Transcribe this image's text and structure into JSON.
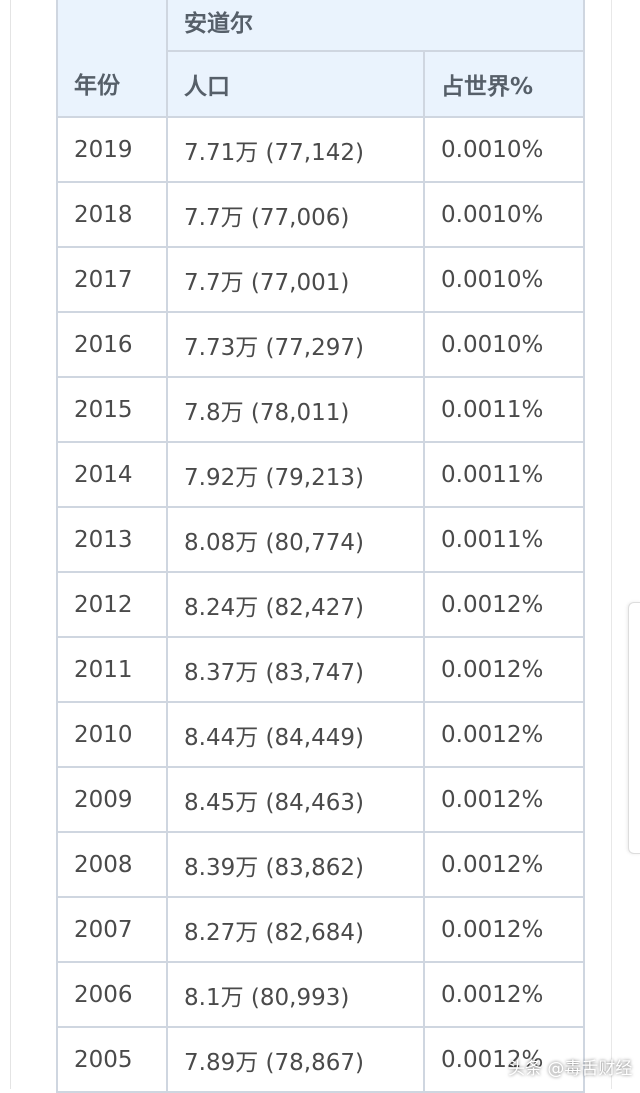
{
  "table": {
    "group_header": "安道尔",
    "headers": {
      "year": "年份",
      "population": "人口",
      "world_share": "占世界%"
    },
    "rows": [
      {
        "year": "2019",
        "population": "7.71万 (77,142)",
        "share": "0.0010%"
      },
      {
        "year": "2018",
        "population": "7.7万 (77,006)",
        "share": "0.0010%"
      },
      {
        "year": "2017",
        "population": "7.7万 (77,001)",
        "share": "0.0010%"
      },
      {
        "year": "2016",
        "population": "7.73万 (77,297)",
        "share": "0.0010%"
      },
      {
        "year": "2015",
        "population": "7.8万 (78,011)",
        "share": "0.0011%"
      },
      {
        "year": "2014",
        "population": "7.92万 (79,213)",
        "share": "0.0011%"
      },
      {
        "year": "2013",
        "population": "8.08万 (80,774)",
        "share": "0.0011%"
      },
      {
        "year": "2012",
        "population": "8.24万 (82,427)",
        "share": "0.0012%"
      },
      {
        "year": "2011",
        "population": "8.37万 (83,747)",
        "share": "0.0012%"
      },
      {
        "year": "2010",
        "population": "8.44万 (84,449)",
        "share": "0.0012%"
      },
      {
        "year": "2009",
        "population": "8.45万 (84,463)",
        "share": "0.0012%"
      },
      {
        "year": "2008",
        "population": "8.39万 (83,862)",
        "share": "0.0012%"
      },
      {
        "year": "2007",
        "population": "8.27万 (82,684)",
        "share": "0.0012%"
      },
      {
        "year": "2006",
        "population": "8.1万 (80,993)",
        "share": "0.0012%"
      },
      {
        "year": "2005",
        "population": "7.89万 (78,867)",
        "share": "0.0012%"
      }
    ]
  },
  "watermark": "头条 @毒舌财经"
}
